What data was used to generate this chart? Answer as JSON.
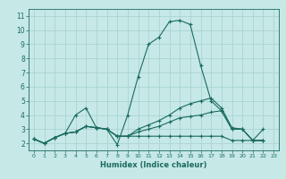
{
  "title": "",
  "xlabel": "Humidex (Indice chaleur)",
  "ylabel": "",
  "bg_color": "#c6e8e6",
  "grid_color": "#aad4d0",
  "line_color": "#1a6b60",
  "xlim": [
    -0.5,
    23.5
  ],
  "ylim": [
    1.5,
    11.5
  ],
  "xticks": [
    0,
    1,
    2,
    3,
    4,
    5,
    6,
    7,
    8,
    9,
    10,
    11,
    12,
    13,
    14,
    15,
    16,
    17,
    18,
    19,
    20,
    21,
    22,
    23
  ],
  "yticks": [
    2,
    3,
    4,
    5,
    6,
    7,
    8,
    9,
    10,
    11
  ],
  "series": [
    [
      2.3,
      2.0,
      2.4,
      2.7,
      4.0,
      4.5,
      3.1,
      3.0,
      1.9,
      4.0,
      6.7,
      9.0,
      9.5,
      10.6,
      10.7,
      10.4,
      7.5,
      5.0,
      4.3,
      3.0,
      3.0,
      2.2,
      3.0
    ],
    [
      2.3,
      2.0,
      2.4,
      2.7,
      2.8,
      3.2,
      3.1,
      3.0,
      2.5,
      2.5,
      2.5,
      2.5,
      2.5,
      2.5,
      2.5,
      2.5,
      2.5,
      2.5,
      2.5,
      2.2,
      2.2,
      2.2,
      2.2
    ],
    [
      2.3,
      2.0,
      2.4,
      2.7,
      2.8,
      3.2,
      3.1,
      3.0,
      2.5,
      2.5,
      2.8,
      3.0,
      3.2,
      3.5,
      3.8,
      3.9,
      4.0,
      4.2,
      4.3,
      3.0,
      3.0,
      2.2,
      2.2
    ],
    [
      2.3,
      2.0,
      2.4,
      2.7,
      2.8,
      3.2,
      3.1,
      3.0,
      2.5,
      2.5,
      3.0,
      3.3,
      3.6,
      4.0,
      4.5,
      4.8,
      5.0,
      5.2,
      4.5,
      3.1,
      3.0,
      2.2,
      2.2
    ]
  ],
  "x_values": [
    0,
    1,
    2,
    3,
    4,
    5,
    6,
    7,
    8,
    9,
    10,
    11,
    12,
    13,
    14,
    15,
    16,
    17,
    18,
    19,
    20,
    21,
    22
  ]
}
